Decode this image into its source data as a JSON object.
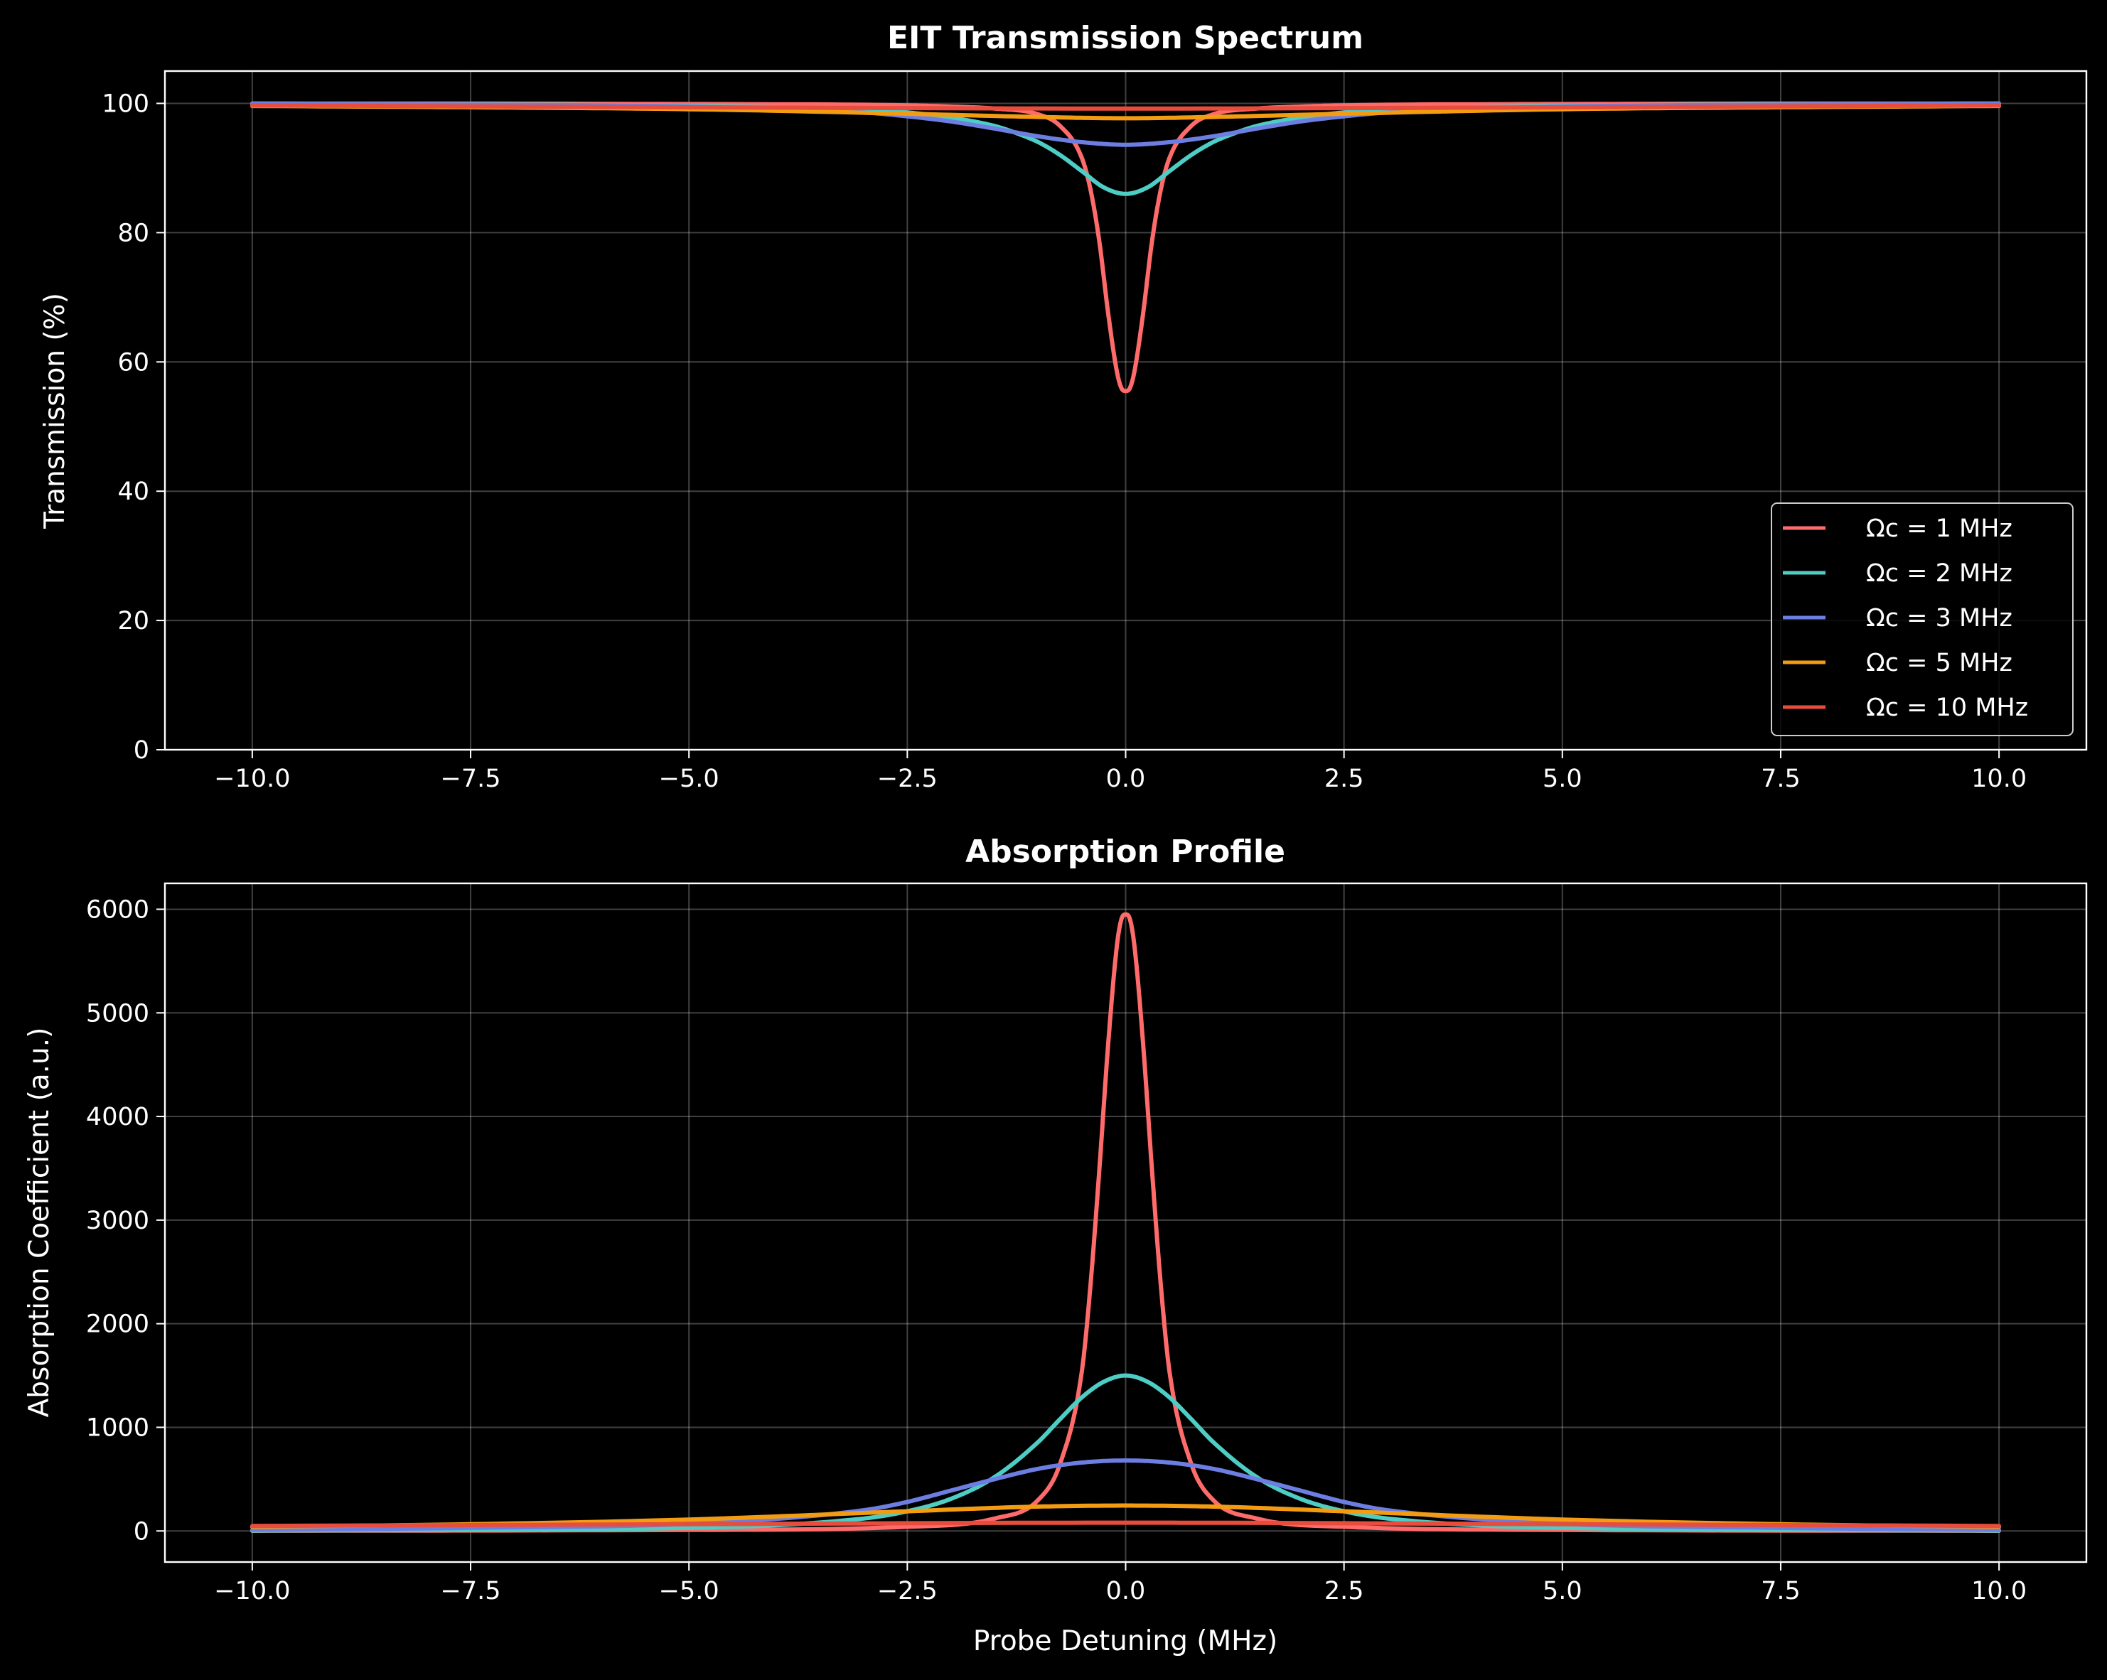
{
  "chart_data": [
    {
      "type": "line",
      "title": "EIT Transmission Spectrum",
      "xlabel": "",
      "ylabel": "Transmission (%)",
      "xlim": [
        -11,
        11
      ],
      "ylim": [
        0,
        105
      ],
      "xticks": [
        -10,
        -7.5,
        -5,
        -2.5,
        0,
        2.5,
        5,
        7.5,
        10
      ],
      "xtick_labels": [
        "−10.0",
        "−7.5",
        "−5.0",
        "−2.5",
        "0.0",
        "2.5",
        "5.0",
        "7.5",
        "10.0"
      ],
      "yticks": [
        0,
        20,
        40,
        60,
        80,
        100
      ],
      "ytick_labels": [
        "0",
        "20",
        "40",
        "60",
        "80",
        "100"
      ],
      "grid": true,
      "legend_position": "lower-right",
      "series": [
        {
          "name": "Ωc = 1 MHz",
          "color": "#ff6b6b",
          "x": [
            -10,
            -5,
            -2.5,
            -2,
            -1.5,
            -1,
            -0.75,
            -0.5,
            -0.4,
            -0.3,
            -0.2,
            -0.1,
            -0.05,
            0,
            0.05,
            0.1,
            0.2,
            0.3,
            0.4,
            0.5,
            0.75,
            1,
            1.5,
            2,
            2.5,
            5,
            10
          ],
          "y": [
            99.99,
            99.9,
            99.7,
            99.5,
            99.2,
            98.3,
            96.5,
            91.5,
            86.5,
            78.5,
            67.5,
            58.5,
            56,
            55.5,
            56,
            58.5,
            67.5,
            78.5,
            86.5,
            91.5,
            96.5,
            98.3,
            99.2,
            99.5,
            99.7,
            99.9,
            99.99
          ]
        },
        {
          "name": "Ωc = 2 MHz",
          "color": "#4ecdc4",
          "x": [
            -10,
            -5,
            -3,
            -2.5,
            -2,
            -1.5,
            -1.25,
            -1,
            -0.75,
            -0.5,
            -0.25,
            0,
            0.25,
            0.5,
            0.75,
            1,
            1.25,
            1.5,
            2,
            2.5,
            3,
            5,
            10
          ],
          "y": [
            99.95,
            99.6,
            99,
            98.6,
            97.8,
            96.5,
            95.4,
            94,
            92,
            89.5,
            87,
            86,
            87,
            89.5,
            92,
            94,
            95.4,
            96.5,
            97.8,
            98.6,
            99,
            99.6,
            99.95
          ]
        },
        {
          "name": "Ωc = 3 MHz",
          "color": "#6c7ee1",
          "x": [
            -10,
            -7.5,
            -5,
            -3,
            -2.5,
            -2,
            -1.5,
            -1,
            -0.5,
            0,
            0.5,
            1,
            1.5,
            2,
            2.5,
            3,
            5,
            7.5,
            10
          ],
          "y": [
            99.95,
            99.8,
            99.5,
            98.6,
            98,
            97.2,
            96.1,
            94.9,
            94,
            93.6,
            94,
            94.9,
            96.1,
            97.2,
            98,
            98.6,
            99.5,
            99.8,
            99.95
          ]
        },
        {
          "name": "Ωc = 5 MHz",
          "color": "#f39c12",
          "x": [
            -10,
            -7.5,
            -5,
            -2.5,
            -1,
            0,
            1,
            2.5,
            5,
            7.5,
            10
          ],
          "y": [
            99.6,
            99.4,
            99.1,
            98.4,
            97.9,
            97.7,
            97.9,
            98.4,
            99.1,
            99.4,
            99.6
          ]
        },
        {
          "name": "Ωc = 10 MHz",
          "color": "#e74c3c",
          "x": [
            -10,
            -5,
            0,
            5,
            10
          ],
          "y": [
            99.7,
            99.4,
            99.2,
            99.4,
            99.7
          ]
        }
      ]
    },
    {
      "type": "line",
      "title": "Absorption Profile",
      "xlabel": "Probe Detuning (MHz)",
      "ylabel": "Absorption Coefficient (a.u.)",
      "xlim": [
        -11,
        11
      ],
      "ylim": [
        -300,
        6250
      ],
      "xticks": [
        -10,
        -7.5,
        -5,
        -2.5,
        0,
        2.5,
        5,
        7.5,
        10
      ],
      "xtick_labels": [
        "−10.0",
        "−7.5",
        "−5.0",
        "−2.5",
        "0.0",
        "2.5",
        "5.0",
        "7.5",
        "10.0"
      ],
      "yticks": [
        0,
        1000,
        2000,
        3000,
        4000,
        5000,
        6000
      ],
      "ytick_labels": [
        "0",
        "1000",
        "2000",
        "3000",
        "4000",
        "5000",
        "6000"
      ],
      "grid": true,
      "series": [
        {
          "name": "Ωc = 1 MHz",
          "color": "#ff6b6b",
          "x": [
            -10,
            -5,
            -2.5,
            -1.5,
            -1,
            -0.75,
            -0.5,
            -0.4,
            -0.3,
            -0.2,
            -0.1,
            -0.05,
            0,
            0.05,
            0.1,
            0.2,
            0.3,
            0.4,
            0.5,
            0.75,
            1,
            1.5,
            2.5,
            5,
            10
          ],
          "y": [
            2,
            10,
            40,
            120,
            300,
            650,
            1550,
            2400,
            3500,
            4700,
            5650,
            5900,
            5950,
            5900,
            5650,
            4700,
            3500,
            2400,
            1550,
            650,
            300,
            120,
            40,
            10,
            2
          ]
        },
        {
          "name": "Ωc = 2 MHz",
          "color": "#4ecdc4",
          "x": [
            -10,
            -5,
            -3,
            -2.5,
            -2,
            -1.5,
            -1,
            -0.75,
            -0.5,
            -0.25,
            0,
            0.25,
            0.5,
            0.75,
            1,
            1.5,
            2,
            2.5,
            3,
            5,
            10
          ],
          "y": [
            4,
            30,
            120,
            190,
            310,
            520,
            860,
            1080,
            1290,
            1440,
            1500,
            1440,
            1290,
            1080,
            860,
            520,
            310,
            190,
            120,
            30,
            4
          ]
        },
        {
          "name": "Ωc = 3 MHz",
          "color": "#6c7ee1",
          "x": [
            -10,
            -7.5,
            -5,
            -3,
            -2.5,
            -2,
            -1.5,
            -1,
            -0.5,
            0,
            0.5,
            1,
            1.5,
            2,
            2.5,
            3,
            5,
            7.5,
            10
          ],
          "y": [
            10,
            30,
            70,
            200,
            280,
            390,
            500,
            600,
            660,
            680,
            660,
            600,
            500,
            390,
            280,
            200,
            70,
            30,
            10
          ]
        },
        {
          "name": "Ωc = 5 MHz",
          "color": "#f39c12",
          "x": [
            -10,
            -7.5,
            -5,
            -2.5,
            -1,
            0,
            1,
            2.5,
            5,
            7.5,
            10
          ],
          "y": [
            40,
            65,
            110,
            190,
            235,
            245,
            235,
            190,
            110,
            65,
            40
          ]
        },
        {
          "name": "Ωc = 10 MHz",
          "color": "#e74c3c",
          "x": [
            -10,
            -5,
            0,
            5,
            10
          ],
          "y": [
            48,
            65,
            80,
            65,
            48
          ]
        }
      ]
    }
  ]
}
